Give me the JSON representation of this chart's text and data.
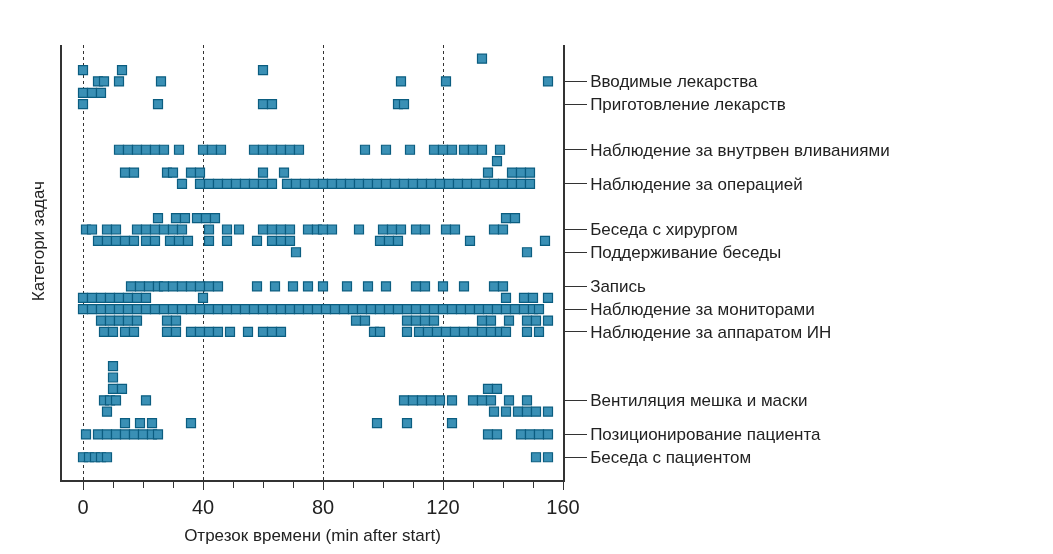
{
  "chart_data": {
    "type": "scatter",
    "orientation": "horizontal",
    "xlabel": "Отрезок времени (min after start)",
    "ylabel": "Категори задач",
    "color": "#3a90b5",
    "marker": "square",
    "grid": "x",
    "xlim": [
      -7,
      160
    ],
    "xticks": [
      0,
      {
        "value": 10,
        "label": null
      },
      {
        "value": 20,
        "label": null
      },
      {
        "value": 30,
        "label": null
      },
      40,
      {
        "value": 50,
        "label": null
      },
      {
        "value": 60,
        "label": null
      },
      {
        "value": 70,
        "label": null
      },
      80,
      {
        "value": 90,
        "label": null
      },
      {
        "value": 100,
        "label": null
      },
      {
        "value": 110,
        "label": null
      },
      120,
      {
        "value": 130,
        "label": null
      },
      {
        "value": 140,
        "label": null
      },
      {
        "value": 150,
        "label": null
      },
      160
    ],
    "categories": [
      null,
      null,
      "Вводимые лекарства",
      null,
      "Приготовление лекарств",
      null,
      null,
      null,
      "Наблюдение за внутрвен вливаниями",
      null,
      null,
      "Наблюдение за операцией",
      null,
      null,
      null,
      "Беседа с хирургом",
      null,
      "Поддерживание беседы",
      null,
      null,
      "Запись",
      null,
      "Наблюдение за мониторами",
      null,
      "Наблюдение за аппаратом ИН",
      null,
      null,
      null,
      null,
      null,
      "Вентиляция мешка и маски",
      null,
      null,
      "Позиционирование пациента",
      null,
      "Беседа с пациентом"
    ],
    "series": [
      {
        "values": [
          133,
          0,
          5,
          0,
          0,
          null,
          null,
          null,
          12,
          138,
          14,
          33,
          null,
          null,
          25,
          1,
          5,
          71,
          null,
          null,
          16,
          0,
          0,
          6,
          7,
          null,
          null,
          10,
          10,
          10,
          7,
          8,
          14,
          1,
          null,
          0
        ]
      },
      {
        "values": [
          null,
          13,
          7,
          3,
          25,
          null,
          null,
          null,
          15,
          null,
          17,
          39,
          null,
          null,
          31,
          3,
          8,
          148,
          null,
          null,
          19,
          3,
          3,
          9,
          10,
          null,
          null,
          null,
          null,
          13,
          9,
          137,
          19,
          5,
          null,
          2
        ]
      },
      {
        "values": [
          null,
          60,
          12,
          6,
          60,
          null,
          null,
          null,
          18,
          null,
          28,
          42,
          null,
          null,
          34,
          8,
          11,
          null,
          null,
          null,
          22,
          6,
          6,
          12,
          14,
          null,
          null,
          null,
          null,
          135,
          11,
          141,
          23,
          8,
          null,
          4
        ]
      },
      {
        "values": [
          null,
          null,
          26,
          null,
          63,
          null,
          null,
          null,
          21,
          null,
          30,
          45,
          null,
          null,
          38,
          11,
          14,
          null,
          null,
          null,
          25,
          9,
          9,
          15,
          17,
          null,
          null,
          null,
          null,
          138,
          21,
          145,
          36,
          11,
          null,
          6
        ]
      },
      {
        "values": [
          null,
          null,
          106,
          null,
          105,
          null,
          null,
          null,
          24,
          null,
          36,
          48,
          null,
          null,
          41,
          18,
          17,
          null,
          null,
          null,
          27,
          12,
          12,
          18,
          28,
          null,
          null,
          null,
          null,
          null,
          107,
          148,
          98,
          14,
          null,
          8
        ]
      },
      {
        "values": [
          null,
          null,
          121,
          null,
          107,
          null,
          null,
          null,
          27,
          null,
          39,
          51,
          null,
          null,
          44,
          21,
          21,
          null,
          null,
          null,
          30,
          15,
          15,
          28,
          31,
          null,
          null,
          null,
          null,
          null,
          110,
          151,
          108,
          17,
          null,
          151
        ]
      },
      {
        "values": [
          null,
          null,
          155,
          null,
          null,
          null,
          null,
          null,
          32,
          null,
          60,
          54,
          null,
          null,
          141,
          24,
          24,
          null,
          null,
          null,
          33,
          18,
          18,
          31,
          36,
          null,
          null,
          null,
          null,
          null,
          113,
          155,
          123,
          20,
          null,
          155
        ]
      },
      {
        "values": [
          null,
          null,
          null,
          null,
          null,
          null,
          null,
          null,
          40,
          null,
          67,
          57,
          null,
          null,
          144,
          27,
          29,
          null,
          null,
          null,
          36,
          21,
          21,
          91,
          39,
          null,
          null,
          null,
          null,
          null,
          116,
          null,
          null,
          23,
          null,
          null
        ]
      },
      {
        "values": [
          null,
          null,
          null,
          null,
          null,
          null,
          null,
          null,
          43,
          null,
          135,
          60,
          null,
          null,
          null,
          30,
          32,
          null,
          null,
          null,
          39,
          40,
          24,
          94,
          42,
          null,
          null,
          null,
          null,
          null,
          119,
          null,
          null,
          25,
          null,
          null
        ]
      },
      {
        "values": [
          null,
          null,
          null,
          null,
          null,
          null,
          null,
          null,
          46,
          null,
          143,
          63,
          null,
          null,
          null,
          33,
          35,
          null,
          null,
          null,
          42,
          141,
          27,
          108,
          45,
          null,
          null,
          null,
          null,
          null,
          123,
          null,
          null,
          135,
          null,
          null
        ]
      },
      {
        "values": [
          null,
          null,
          null,
          null,
          null,
          null,
          null,
          null,
          57,
          null,
          146,
          68,
          null,
          null,
          null,
          42,
          42,
          null,
          null,
          null,
          45,
          147,
          30,
          111,
          49,
          null,
          null,
          null,
          null,
          null,
          130,
          null,
          null,
          138,
          null,
          null
        ]
      },
      {
        "values": [
          null,
          null,
          null,
          null,
          null,
          null,
          null,
          null,
          60,
          null,
          149,
          71,
          null,
          null,
          null,
          48,
          48,
          null,
          null,
          null,
          58,
          150,
          33,
          114,
          55,
          null,
          null,
          null,
          null,
          null,
          133,
          null,
          null,
          146,
          null,
          null
        ]
      },
      {
        "values": [
          null,
          null,
          null,
          null,
          null,
          null,
          null,
          null,
          63,
          null,
          null,
          74,
          null,
          null,
          null,
          52,
          58,
          null,
          null,
          null,
          64,
          155,
          36,
          117,
          60,
          null,
          null,
          null,
          null,
          null,
          136,
          null,
          null,
          149,
          null,
          null
        ]
      },
      {
        "values": [
          null,
          null,
          null,
          null,
          null,
          null,
          null,
          null,
          66,
          null,
          null,
          77,
          null,
          null,
          null,
          60,
          63,
          null,
          null,
          null,
          70,
          null,
          39,
          133,
          63,
          null,
          null,
          null,
          null,
          null,
          142,
          null,
          null,
          152,
          null,
          null
        ]
      },
      {
        "values": [
          null,
          null,
          null,
          null,
          null,
          null,
          null,
          null,
          69,
          null,
          null,
          80,
          null,
          null,
          null,
          63,
          66,
          null,
          null,
          null,
          75,
          null,
          42,
          136,
          66,
          null,
          null,
          null,
          null,
          null,
          148,
          null,
          null,
          155,
          null,
          null
        ]
      },
      {
        "values": [
          null,
          null,
          null,
          null,
          null,
          null,
          null,
          null,
          72,
          null,
          null,
          83,
          null,
          null,
          null,
          66,
          69,
          null,
          null,
          null,
          80,
          null,
          45,
          142,
          97,
          null,
          null,
          null,
          null,
          null,
          null,
          null,
          null,
          null,
          null,
          null
        ]
      },
      {
        "values": [
          null,
          null,
          null,
          null,
          null,
          null,
          null,
          null,
          94,
          null,
          null,
          86,
          null,
          null,
          null,
          69,
          99,
          null,
          null,
          null,
          88,
          null,
          48,
          148,
          99,
          null,
          null,
          null,
          null,
          null,
          null,
          null,
          null,
          null,
          null,
          null
        ]
      },
      {
        "values": [
          null,
          null,
          null,
          null,
          null,
          null,
          null,
          null,
          101,
          null,
          null,
          89,
          null,
          null,
          null,
          75,
          102,
          null,
          null,
          null,
          95,
          null,
          51,
          151,
          108,
          null,
          null,
          null,
          null,
          null,
          null,
          null,
          null,
          null,
          null,
          null
        ]
      },
      {
        "values": [
          null,
          null,
          null,
          null,
          null,
          null,
          null,
          null,
          109,
          null,
          null,
          92,
          null,
          null,
          null,
          78,
          105,
          null,
          null,
          null,
          101,
          null,
          54,
          155,
          112,
          null,
          null,
          null,
          null,
          null,
          null,
          null,
          null,
          null,
          null,
          null
        ]
      },
      {
        "values": [
          null,
          null,
          null,
          null,
          null,
          null,
          null,
          null,
          117,
          null,
          null,
          95,
          null,
          null,
          null,
          80,
          129,
          null,
          null,
          null,
          111,
          null,
          57,
          null,
          115,
          null,
          null,
          null,
          null,
          null,
          null,
          null,
          null,
          null,
          null,
          null
        ]
      },
      {
        "values": [
          null,
          null,
          null,
          null,
          null,
          null,
          null,
          null,
          120,
          null,
          null,
          98,
          null,
          null,
          null,
          83,
          154,
          null,
          null,
          null,
          114,
          null,
          60,
          null,
          118,
          null,
          null,
          null,
          null,
          null,
          null,
          null,
          null,
          null,
          null,
          null
        ]
      },
      {
        "values": [
          null,
          null,
          null,
          null,
          null,
          null,
          null,
          null,
          123,
          null,
          null,
          101,
          null,
          null,
          null,
          92,
          null,
          null,
          null,
          null,
          120,
          null,
          63,
          null,
          121,
          null,
          null,
          null,
          null,
          null,
          null,
          null,
          null,
          null,
          null,
          null
        ]
      },
      {
        "values": [
          null,
          null,
          null,
          null,
          null,
          null,
          null,
          null,
          127,
          null,
          null,
          104,
          null,
          null,
          null,
          100,
          null,
          null,
          null,
          null,
          127,
          null,
          66,
          null,
          124,
          null,
          null,
          null,
          null,
          null,
          null,
          null,
          null,
          null,
          null,
          null
        ]
      },
      {
        "values": [
          null,
          null,
          null,
          null,
          null,
          null,
          null,
          null,
          130,
          null,
          null,
          107,
          null,
          null,
          null,
          103,
          null,
          null,
          null,
          null,
          137,
          null,
          69,
          null,
          127,
          null,
          null,
          null,
          null,
          null,
          null,
          null,
          null,
          null,
          null,
          null
        ]
      },
      {
        "values": [
          null,
          null,
          null,
          null,
          null,
          null,
          null,
          null,
          133,
          null,
          null,
          110,
          null,
          null,
          null,
          106,
          null,
          null,
          null,
          null,
          140,
          null,
          72,
          null,
          130,
          null,
          null,
          null,
          null,
          null,
          null,
          null,
          null,
          null,
          null,
          null
        ]
      },
      {
        "values": [
          null,
          null,
          null,
          null,
          null,
          null,
          null,
          null,
          139,
          null,
          null,
          113,
          null,
          null,
          null,
          111,
          null,
          null,
          null,
          null,
          null,
          null,
          75,
          null,
          133,
          null,
          null,
          null,
          null,
          null,
          null,
          null,
          null,
          null,
          null,
          null
        ]
      },
      {
        "values": [
          null,
          null,
          null,
          null,
          null,
          null,
          null,
          null,
          null,
          null,
          null,
          116,
          null,
          null,
          null,
          114,
          null,
          null,
          null,
          null,
          null,
          null,
          78,
          null,
          136,
          null,
          null,
          null,
          null,
          null,
          null,
          null,
          null,
          null,
          null,
          null
        ]
      },
      {
        "values": [
          null,
          null,
          null,
          null,
          null,
          null,
          null,
          null,
          null,
          null,
          null,
          119,
          null,
          null,
          null,
          121,
          null,
          null,
          null,
          null,
          null,
          null,
          81,
          null,
          139,
          null,
          null,
          null,
          null,
          null,
          null,
          null,
          null,
          null,
          null,
          null
        ]
      },
      {
        "values": [
          null,
          null,
          null,
          null,
          null,
          null,
          null,
          null,
          null,
          null,
          null,
          122,
          null,
          null,
          null,
          124,
          null,
          null,
          null,
          null,
          null,
          null,
          84,
          null,
          141,
          null,
          null,
          null,
          null,
          null,
          null,
          null,
          null,
          null,
          null,
          null
        ]
      },
      {
        "values": [
          null,
          null,
          null,
          null,
          null,
          null,
          null,
          null,
          null,
          null,
          null,
          125,
          null,
          null,
          null,
          137,
          null,
          null,
          null,
          null,
          null,
          null,
          87,
          null,
          148,
          null,
          null,
          null,
          null,
          null,
          null,
          null,
          null,
          null,
          null,
          null
        ]
      },
      {
        "values": [
          null,
          null,
          null,
          null,
          null,
          null,
          null,
          null,
          null,
          null,
          null,
          128,
          null,
          null,
          null,
          140,
          null,
          null,
          null,
          null,
          null,
          null,
          90,
          null,
          152,
          null,
          null,
          null,
          null,
          null,
          null,
          null,
          null,
          null,
          null,
          null
        ]
      },
      {
        "values": [
          null,
          null,
          null,
          null,
          null,
          null,
          null,
          null,
          null,
          null,
          null,
          131,
          null,
          null,
          null,
          null,
          null,
          null,
          null,
          null,
          null,
          null,
          93,
          null,
          null,
          null,
          null,
          null,
          null,
          null,
          null,
          null,
          null,
          null,
          null,
          null
        ]
      },
      {
        "values": [
          null,
          null,
          null,
          null,
          null,
          null,
          null,
          null,
          null,
          null,
          null,
          134,
          null,
          null,
          null,
          null,
          null,
          null,
          null,
          null,
          null,
          null,
          96,
          null,
          null,
          null,
          null,
          null,
          null,
          null,
          null,
          null,
          null,
          null,
          null,
          null
        ]
      },
      {
        "values": [
          null,
          null,
          null,
          null,
          null,
          null,
          null,
          null,
          null,
          null,
          null,
          137,
          null,
          null,
          null,
          null,
          null,
          null,
          null,
          null,
          null,
          null,
          99,
          null,
          null,
          null,
          null,
          null,
          null,
          null,
          null,
          null,
          null,
          null,
          null,
          null
        ]
      },
      {
        "values": [
          null,
          null,
          null,
          null,
          null,
          null,
          null,
          null,
          null,
          null,
          null,
          140,
          null,
          null,
          null,
          null,
          null,
          null,
          null,
          null,
          null,
          null,
          102,
          null,
          null,
          null,
          null,
          null,
          null,
          null,
          null,
          null,
          null,
          null,
          null,
          null
        ]
      },
      {
        "values": [
          null,
          null,
          null,
          null,
          null,
          null,
          null,
          null,
          null,
          null,
          null,
          143,
          null,
          null,
          null,
          null,
          null,
          null,
          null,
          null,
          null,
          null,
          105,
          null,
          null,
          null,
          null,
          null,
          null,
          null,
          null,
          null,
          null,
          null,
          null,
          null
        ]
      },
      {
        "values": [
          null,
          null,
          null,
          null,
          null,
          null,
          null,
          null,
          null,
          null,
          null,
          146,
          null,
          null,
          null,
          null,
          null,
          null,
          null,
          null,
          null,
          null,
          108,
          null,
          null,
          null,
          null,
          null,
          null,
          null,
          null,
          null,
          null,
          null,
          null,
          null
        ]
      },
      {
        "values": [
          null,
          null,
          null,
          null,
          null,
          null,
          null,
          null,
          null,
          null,
          null,
          149,
          null,
          null,
          null,
          null,
          null,
          null,
          null,
          null,
          null,
          null,
          111,
          null,
          null,
          null,
          null,
          null,
          null,
          null,
          null,
          null,
          null,
          null,
          null,
          null
        ]
      },
      {
        "values": [
          null,
          null,
          null,
          null,
          null,
          null,
          null,
          null,
          null,
          null,
          null,
          null,
          null,
          null,
          null,
          null,
          null,
          null,
          null,
          null,
          null,
          null,
          114,
          null,
          null,
          null,
          null,
          null,
          null,
          null,
          null,
          null,
          null,
          null,
          null,
          null
        ]
      },
      {
        "values": [
          null,
          null,
          null,
          null,
          null,
          null,
          null,
          null,
          null,
          null,
          null,
          null,
          null,
          null,
          null,
          null,
          null,
          null,
          null,
          null,
          null,
          null,
          117,
          null,
          null,
          null,
          null,
          null,
          null,
          null,
          null,
          null,
          null,
          null,
          null,
          null
        ]
      },
      {
        "values": [
          null,
          null,
          null,
          null,
          null,
          null,
          null,
          null,
          null,
          null,
          null,
          null,
          null,
          null,
          null,
          null,
          null,
          null,
          null,
          null,
          null,
          null,
          120,
          null,
          null,
          null,
          null,
          null,
          null,
          null,
          null,
          null,
          null,
          null,
          null,
          null
        ]
      },
      {
        "values": [
          null,
          null,
          null,
          null,
          null,
          null,
          null,
          null,
          null,
          null,
          null,
          null,
          null,
          null,
          null,
          null,
          null,
          null,
          null,
          null,
          null,
          null,
          123,
          null,
          null,
          null,
          null,
          null,
          null,
          null,
          null,
          null,
          null,
          null,
          null,
          null
        ]
      },
      {
        "values": [
          null,
          null,
          null,
          null,
          null,
          null,
          null,
          null,
          null,
          null,
          null,
          null,
          null,
          null,
          null,
          null,
          null,
          null,
          null,
          null,
          null,
          null,
          126,
          null,
          null,
          null,
          null,
          null,
          null,
          null,
          null,
          null,
          null,
          null,
          null,
          null
        ]
      },
      {
        "values": [
          null,
          null,
          null,
          null,
          null,
          null,
          null,
          null,
          null,
          null,
          null,
          null,
          null,
          null,
          null,
          null,
          null,
          null,
          null,
          null,
          null,
          null,
          129,
          null,
          null,
          null,
          null,
          null,
          null,
          null,
          null,
          null,
          null,
          null,
          null,
          null
        ]
      },
      {
        "values": [
          null,
          null,
          null,
          null,
          null,
          null,
          null,
          null,
          null,
          null,
          null,
          null,
          null,
          null,
          null,
          null,
          null,
          null,
          null,
          null,
          null,
          null,
          132,
          null,
          null,
          null,
          null,
          null,
          null,
          null,
          null,
          null,
          null,
          null,
          null,
          null
        ]
      },
      {
        "values": [
          null,
          null,
          null,
          null,
          null,
          null,
          null,
          null,
          null,
          null,
          null,
          null,
          null,
          null,
          null,
          null,
          null,
          null,
          null,
          null,
          null,
          null,
          135,
          null,
          null,
          null,
          null,
          null,
          null,
          null,
          null,
          null,
          null,
          null,
          null,
          null
        ]
      },
      {
        "values": [
          null,
          null,
          null,
          null,
          null,
          null,
          null,
          null,
          null,
          null,
          null,
          null,
          null,
          null,
          null,
          null,
          null,
          null,
          null,
          null,
          null,
          null,
          138,
          null,
          null,
          null,
          null,
          null,
          null,
          null,
          null,
          null,
          null,
          null,
          null,
          null
        ]
      },
      {
        "values": [
          null,
          null,
          null,
          null,
          null,
          null,
          null,
          null,
          null,
          null,
          null,
          null,
          null,
          null,
          null,
          null,
          null,
          null,
          null,
          null,
          null,
          null,
          141,
          null,
          null,
          null,
          null,
          null,
          null,
          null,
          null,
          null,
          null,
          null,
          null,
          null
        ]
      },
      {
        "values": [
          null,
          null,
          null,
          null,
          null,
          null,
          null,
          null,
          null,
          null,
          null,
          null,
          null,
          null,
          null,
          null,
          null,
          null,
          null,
          null,
          null,
          null,
          144,
          null,
          null,
          null,
          null,
          null,
          null,
          null,
          null,
          null,
          null,
          null,
          null,
          null
        ]
      },
      {
        "values": [
          null,
          null,
          null,
          null,
          null,
          null,
          null,
          null,
          null,
          null,
          null,
          null,
          null,
          null,
          null,
          null,
          null,
          null,
          null,
          null,
          null,
          null,
          147,
          null,
          null,
          null,
          null,
          null,
          null,
          null,
          null,
          null,
          null,
          null,
          null,
          null
        ]
      },
      {
        "values": [
          null,
          null,
          null,
          null,
          null,
          null,
          null,
          null,
          null,
          null,
          null,
          null,
          null,
          null,
          null,
          null,
          null,
          null,
          null,
          null,
          null,
          null,
          150,
          null,
          null,
          null,
          null,
          null,
          null,
          null,
          null,
          null,
          null,
          null,
          null,
          null
        ]
      },
      {
        "values": [
          null,
          null,
          null,
          null,
          null,
          null,
          null,
          null,
          null,
          null,
          null,
          null,
          null,
          null,
          null,
          null,
          null,
          null,
          null,
          null,
          null,
          null,
          152,
          null,
          null,
          null,
          null,
          null,
          null,
          null,
          null,
          null,
          null,
          null,
          null,
          null
        ]
      }
    ]
  }
}
